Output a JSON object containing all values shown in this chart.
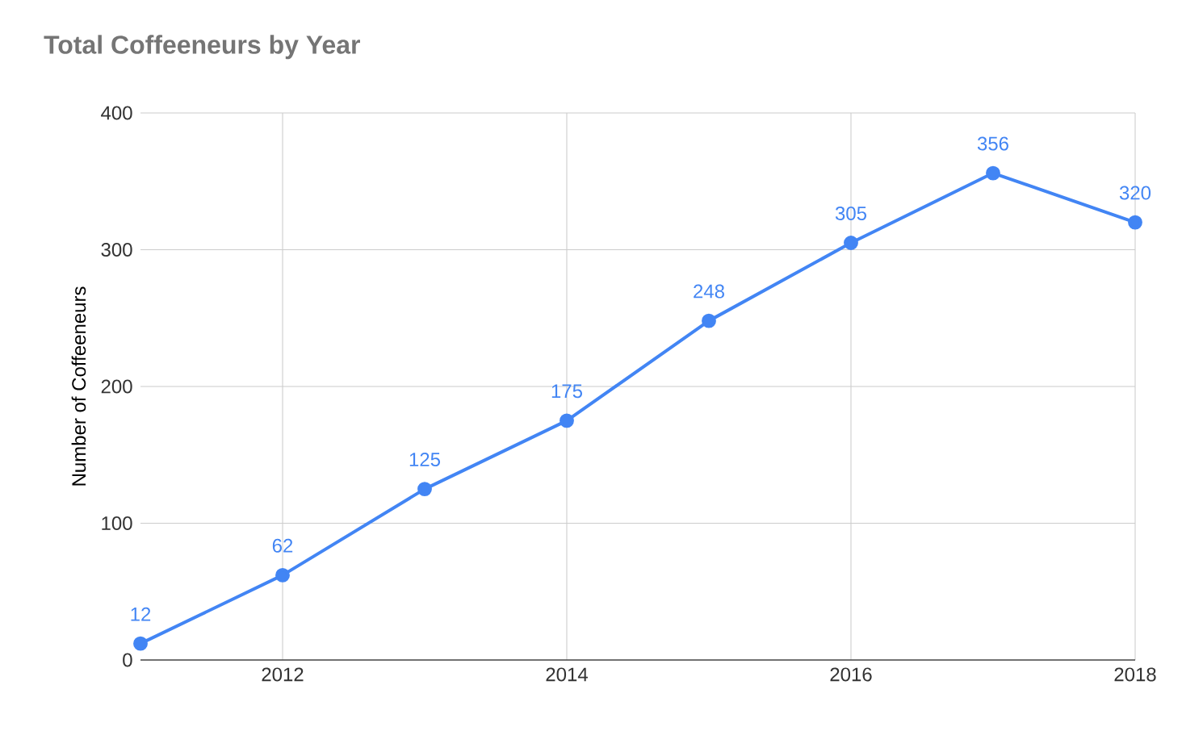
{
  "chart_data": {
    "type": "line",
    "title": "Total Coffeeneurs by Year",
    "ylabel": "Number of Coffeeneurs",
    "x": [
      2011,
      2012,
      2013,
      2014,
      2015,
      2016,
      2017,
      2018
    ],
    "series": [
      {
        "color": "#4285f4",
        "values": [
          12,
          62,
          125,
          175,
          248,
          305,
          356,
          320
        ]
      }
    ],
    "xlim": [
      2011,
      2018
    ],
    "xticks": [
      2012,
      2014,
      2016,
      2018
    ],
    "ylim": [
      0,
      400
    ],
    "yticks": [
      0,
      100,
      200,
      300,
      400
    ],
    "grid": true,
    "marker": "circle",
    "line_style": "solid",
    "data_labels": true
  }
}
